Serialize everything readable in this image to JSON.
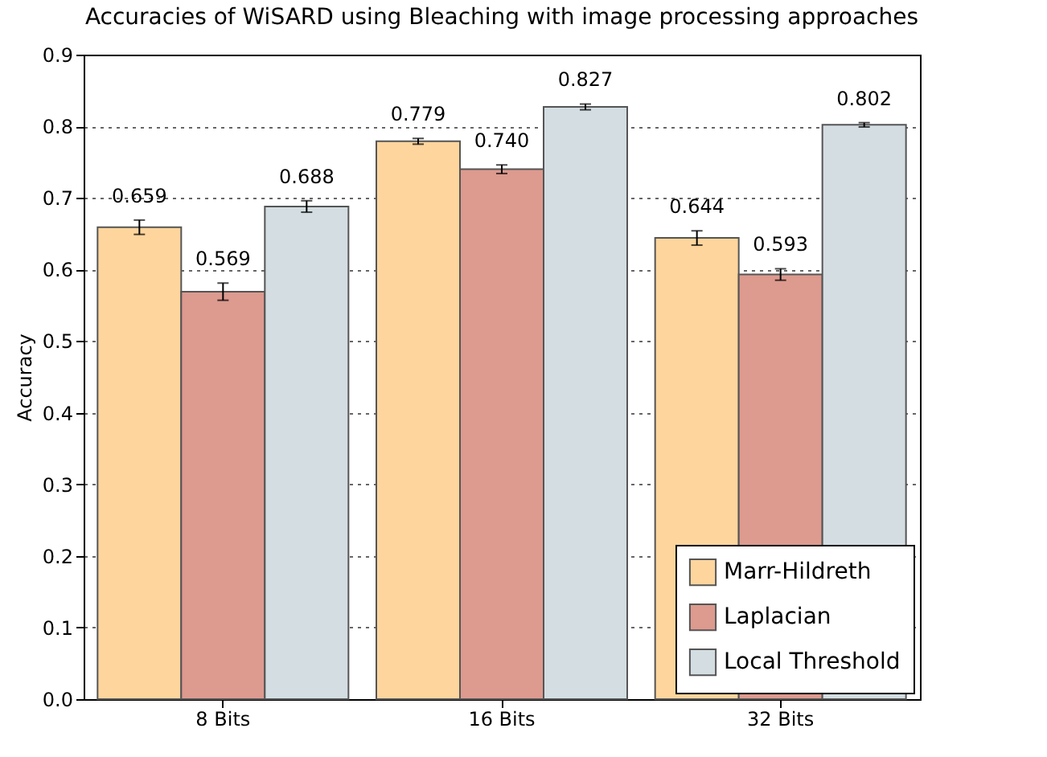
{
  "chart_data": {
    "type": "bar",
    "title": "Accuracies of WiSARD using Bleaching with image processing approaches",
    "ylabel": "Accuracy",
    "categories": [
      "8 Bits",
      "16 Bits",
      "32 Bits"
    ],
    "series": [
      {
        "name": "Marr-Hildreth",
        "color": "#fed59d",
        "values": [
          0.659,
          0.779,
          0.644
        ],
        "errors": [
          0.01,
          0.004,
          0.01
        ],
        "value_labels": [
          "0.659",
          "0.779",
          "0.644"
        ]
      },
      {
        "name": "Laplacian",
        "color": "#dd9a8f",
        "values": [
          0.569,
          0.74,
          0.593
        ],
        "errors": [
          0.012,
          0.006,
          0.008
        ],
        "value_labels": [
          "0.569",
          "0.740",
          "0.593"
        ]
      },
      {
        "name": "Local Threshold",
        "color": "#d3dde2",
        "values": [
          0.688,
          0.827,
          0.802
        ],
        "errors": [
          0.008,
          0.004,
          0.003
        ],
        "value_labels": [
          "0.688",
          "0.827",
          "0.802"
        ]
      }
    ],
    "ylim": [
      0,
      0.9
    ],
    "yticks": [
      {
        "value": 0,
        "label": "0.0"
      },
      0.1,
      0.2,
      0.3,
      0.4,
      0.5,
      0.6,
      0.7,
      0.8,
      0.9
    ],
    "grid": "y",
    "legend": "bottom right"
  }
}
